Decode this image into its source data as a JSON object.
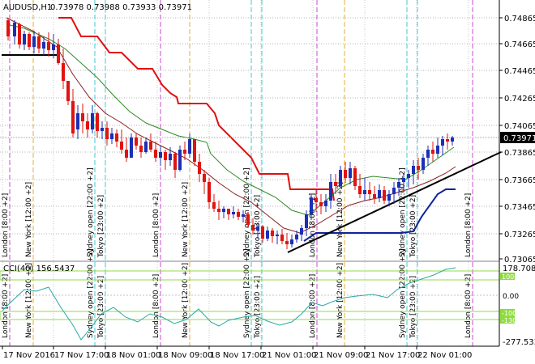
{
  "header": {
    "symbol": "AUDUSD,H1",
    "ohlc": "0.73978 0.73988 0.73933 0.73971"
  },
  "cci": {
    "label": "CCI(40) 156.5437",
    "scale_max": "178.708",
    "scale_min": "-277.5331",
    "levels": [
      "100",
      "0.00",
      "-100",
      "-130"
    ]
  },
  "price_axis": {
    "ticks": [
      "0.74865",
      "0.74665",
      "0.74465",
      "0.74265",
      "0.74065",
      "0.73865",
      "0.73665",
      "0.73465",
      "0.73265",
      "0.73065"
    ],
    "current": "0.73971"
  },
  "time_axis": {
    "labels": [
      "17 Nov 2016",
      "17 Nov 17:00",
      "18 Nov 01:00",
      "18 Nov 09:00",
      "18 Nov 17:00",
      "21 Nov 01:00",
      "21 Nov 09:00",
      "21 Nov 17:00",
      "22 Nov 01:00"
    ]
  },
  "sessions": {
    "london": "London [8:00 +2]",
    "newyork": "New York [12:00 +2]",
    "sydney": "Sydney open [22:00 +2]",
    "tokyo": "Tokyo [23:00 +2]"
  },
  "colors": {
    "bull": "#1c2fb5",
    "bear": "#e0140f",
    "stop_line": "#e01010",
    "ma_fast": "#2f8a22",
    "ma_slow": "#8b2020",
    "channel": "#12229a",
    "cci": "#2aa9a6",
    "london_marker": "#c84ad0",
    "newyork_marker": "#e0b030",
    "sydney_marker": "#3ecbd6"
  }
}
